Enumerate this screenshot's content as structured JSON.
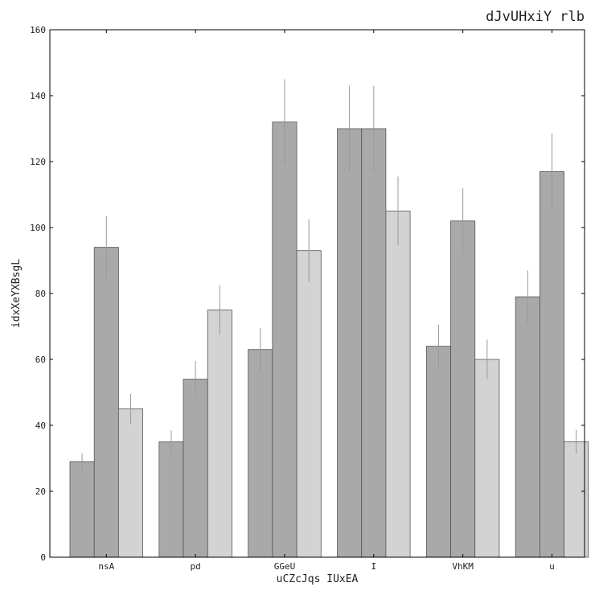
{
  "chart_data": {
    "type": "bar",
    "title": "dJvUHxiY rlb",
    "xlabel": "uCZcJqs IUxEA",
    "ylabel": "idxXeYXBsgL",
    "ylim": [
      0,
      160
    ],
    "yticks": [
      0,
      20,
      40,
      60,
      80,
      100,
      120,
      140,
      160
    ],
    "grid": false,
    "categories": [
      "nsA",
      "pd",
      "GGeU",
      "I",
      "VhKM",
      "u"
    ],
    "series": [
      {
        "color": "#a9a9a9",
        "values": [
          29,
          35,
          63,
          130,
          64,
          79
        ],
        "errors": [
          2.5,
          3.5,
          6.5,
          13,
          6.5,
          8
        ]
      },
      {
        "color": "#a9a9a9",
        "values": [
          94,
          54,
          132,
          130,
          102,
          117
        ],
        "errors": [
          9.5,
          5.5,
          13,
          13,
          10,
          11.5
        ]
      },
      {
        "color": "#d3d3d3",
        "values": [
          45,
          75,
          93,
          105,
          60,
          35
        ],
        "errors": [
          4.5,
          7.5,
          9.5,
          10.5,
          6,
          3.5
        ]
      }
    ]
  }
}
